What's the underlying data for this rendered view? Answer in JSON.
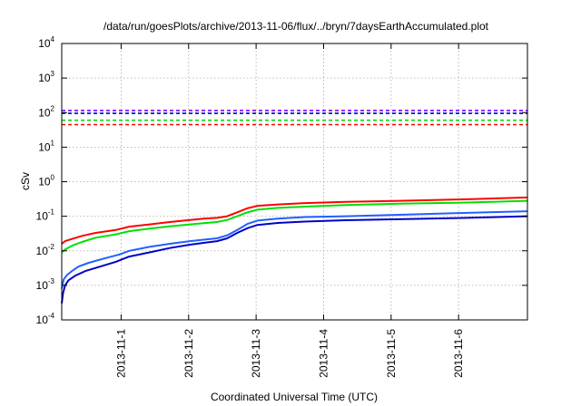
{
  "chart_data": {
    "type": "line",
    "title": "/data/run/goesPlots/archive/2013-11-06/flux/../bryn/7daysEarthAccumulated.plot",
    "xlabel": "Coordinated Universal Time (UTC)",
    "ylabel": "cSv",
    "y_scale": "log",
    "ylim": [
      0.0001,
      10000
    ],
    "xlim": [
      0,
      6.9
    ],
    "grid": true,
    "legend": "none",
    "y_ticks": [
      {
        "base": "10",
        "exp": "-4",
        "value": 0.0001
      },
      {
        "base": "10",
        "exp": "-3",
        "value": 0.001
      },
      {
        "base": "10",
        "exp": "-2",
        "value": 0.01
      },
      {
        "base": "10",
        "exp": "-1",
        "value": 0.1
      },
      {
        "base": "10",
        "exp": "0",
        "value": 1
      },
      {
        "base": "10",
        "exp": "1",
        "value": 10
      },
      {
        "base": "10",
        "exp": "2",
        "value": 100
      },
      {
        "base": "10",
        "exp": "3",
        "value": 1000
      },
      {
        "base": "10",
        "exp": "4",
        "value": 10000
      }
    ],
    "x_ticks": [
      {
        "label": "2013-11-1",
        "value": 0.88
      },
      {
        "label": "2013-11-2",
        "value": 1.88
      },
      {
        "label": "2013-11-3",
        "value": 2.88
      },
      {
        "label": "2013-11-4",
        "value": 3.88
      },
      {
        "label": "2013-11-5",
        "value": 4.88
      },
      {
        "label": "2013-11-6",
        "value": 5.88
      }
    ],
    "series": [
      {
        "color": "#ff0000",
        "style": "solid",
        "x": [
          0,
          0.05,
          0.15,
          0.3,
          0.5,
          0.8,
          1.0,
          1.3,
          1.6,
          1.9,
          2.1,
          2.3,
          2.45,
          2.6,
          2.75,
          2.9,
          3.2,
          3.6,
          4.2,
          5.0,
          6.0,
          6.9
        ],
        "y": [
          0.016,
          0.019,
          0.022,
          0.027,
          0.033,
          0.04,
          0.05,
          0.058,
          0.068,
          0.078,
          0.085,
          0.09,
          0.1,
          0.13,
          0.17,
          0.2,
          0.22,
          0.24,
          0.26,
          0.28,
          0.31,
          0.35
        ]
      },
      {
        "color": "#00e000",
        "style": "solid",
        "x": [
          0,
          0.05,
          0.15,
          0.3,
          0.5,
          0.8,
          1.0,
          1.3,
          1.6,
          1.9,
          2.1,
          2.3,
          2.45,
          2.6,
          2.75,
          2.9,
          3.2,
          3.6,
          4.2,
          5.0,
          6.0,
          6.9
        ],
        "y": [
          0.009,
          0.011,
          0.014,
          0.018,
          0.024,
          0.03,
          0.037,
          0.044,
          0.051,
          0.058,
          0.063,
          0.068,
          0.078,
          0.1,
          0.13,
          0.155,
          0.175,
          0.19,
          0.21,
          0.23,
          0.25,
          0.28
        ]
      },
      {
        "color": "#2060ff",
        "style": "solid",
        "x": [
          0,
          0.03,
          0.08,
          0.15,
          0.25,
          0.4,
          0.6,
          0.85,
          1.0,
          1.3,
          1.6,
          1.9,
          2.1,
          2.3,
          2.45,
          2.6,
          2.75,
          2.9,
          3.2,
          3.6,
          4.2,
          5.0,
          6.0,
          6.9
        ],
        "y": [
          0.0008,
          0.0015,
          0.002,
          0.0026,
          0.0035,
          0.0045,
          0.0058,
          0.0078,
          0.01,
          0.013,
          0.016,
          0.019,
          0.021,
          0.023,
          0.028,
          0.04,
          0.06,
          0.075,
          0.085,
          0.095,
          0.1,
          0.11,
          0.125,
          0.14
        ]
      },
      {
        "color": "#0000c8",
        "style": "solid",
        "x": [
          0,
          0.02,
          0.05,
          0.1,
          0.2,
          0.35,
          0.55,
          0.8,
          1.0,
          1.3,
          1.6,
          1.9,
          2.1,
          2.3,
          2.45,
          2.6,
          2.75,
          2.9,
          3.2,
          3.6,
          4.2,
          5.0,
          6.0,
          6.9
        ],
        "y": [
          0.0003,
          0.0006,
          0.001,
          0.0014,
          0.0019,
          0.0026,
          0.0034,
          0.0048,
          0.0068,
          0.009,
          0.012,
          0.015,
          0.017,
          0.019,
          0.023,
          0.033,
          0.045,
          0.056,
          0.064,
          0.07,
          0.077,
          0.082,
          0.09,
          0.1
        ]
      },
      {
        "color": "#8000ff",
        "style": "dashed",
        "x": [
          0,
          6.9
        ],
        "y": [
          115,
          115
        ]
      },
      {
        "color": "#0000c8",
        "style": "dashed",
        "x": [
          0,
          6.9
        ],
        "y": [
          95,
          95
        ]
      },
      {
        "color": "#00e000",
        "style": "dashed",
        "x": [
          0,
          6.9
        ],
        "y": [
          60,
          60
        ]
      },
      {
        "color": "#ff0000",
        "style": "dashed",
        "x": [
          0,
          6.9
        ],
        "y": [
          45,
          45
        ]
      }
    ]
  }
}
